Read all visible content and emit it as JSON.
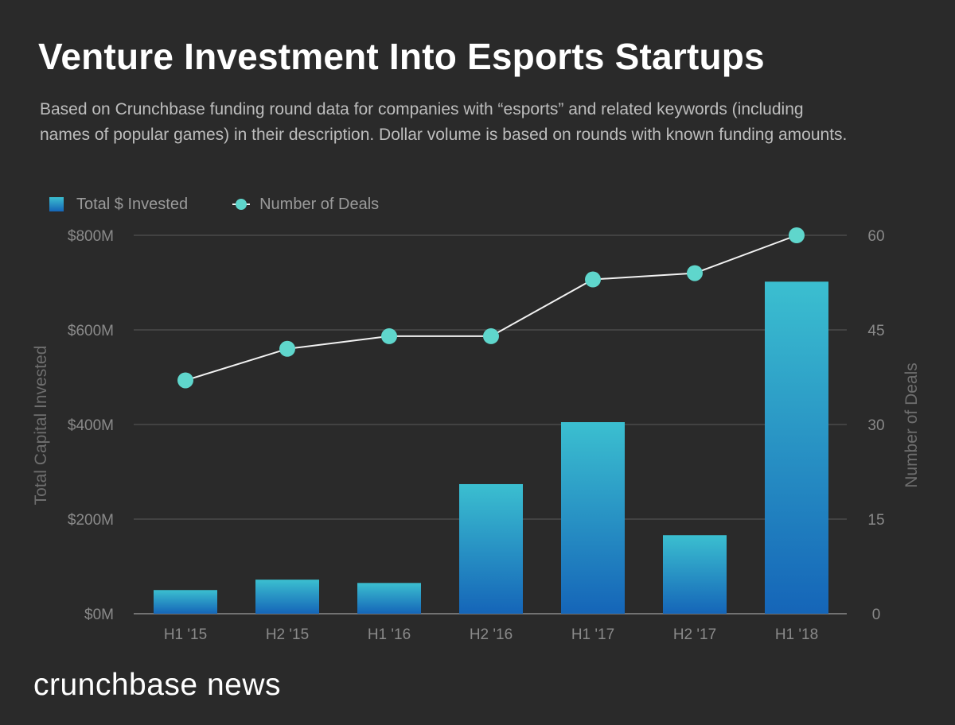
{
  "header": {
    "title": "Venture Investment Into Esports Startups",
    "subtitle_line1": "Based on Crunchbase funding round data for companies with “esports” and related keywords (including",
    "subtitle_line2": "names of popular games) in their description. Dollar volume is based on rounds with known funding amounts."
  },
  "legend": {
    "bars_label": "Total $ Invested",
    "line_label": "Number of Deals"
  },
  "brand": {
    "logo_text": "crunchbase news"
  },
  "colors": {
    "background": "#2a2a2a",
    "bar_top": "#3bbfd0",
    "bar_bottom": "#1565b8",
    "line": "#f2f2f2",
    "marker": "#5fd6cc",
    "grid": "#5a5a5a",
    "axis_text": "#8a8a8a"
  },
  "chart_data": {
    "type": "bar",
    "title": "Venture Investment Into Esports Startups",
    "categories": [
      "H1 '15",
      "H2 '15",
      "H1 '16",
      "H2 '16",
      "H1 '17",
      "H2 '17",
      "H1 '18"
    ],
    "series": [
      {
        "name": "Total $ Invested",
        "type": "bar",
        "axis": "left",
        "values": [
          50,
          72,
          65,
          274,
          405,
          166,
          702
        ]
      },
      {
        "name": "Number of Deals",
        "type": "line",
        "axis": "right",
        "values": [
          37,
          42,
          44,
          44,
          53,
          54,
          60
        ]
      }
    ],
    "ylabel": "Total Capital Invested",
    "y2label": "Number of Deals",
    "ylim": [
      0,
      800
    ],
    "y2lim": [
      0,
      60
    ],
    "yticks": [
      "$0M",
      "$200M",
      "$400M",
      "$600M",
      "$800M"
    ],
    "yticks_values": [
      0,
      200,
      400,
      600,
      800
    ],
    "y2ticks": [
      "0",
      "15",
      "30",
      "45",
      "60"
    ],
    "y2ticks_values": [
      0,
      15,
      30,
      45,
      60
    ],
    "grid": true,
    "legend_position": "top-left"
  }
}
